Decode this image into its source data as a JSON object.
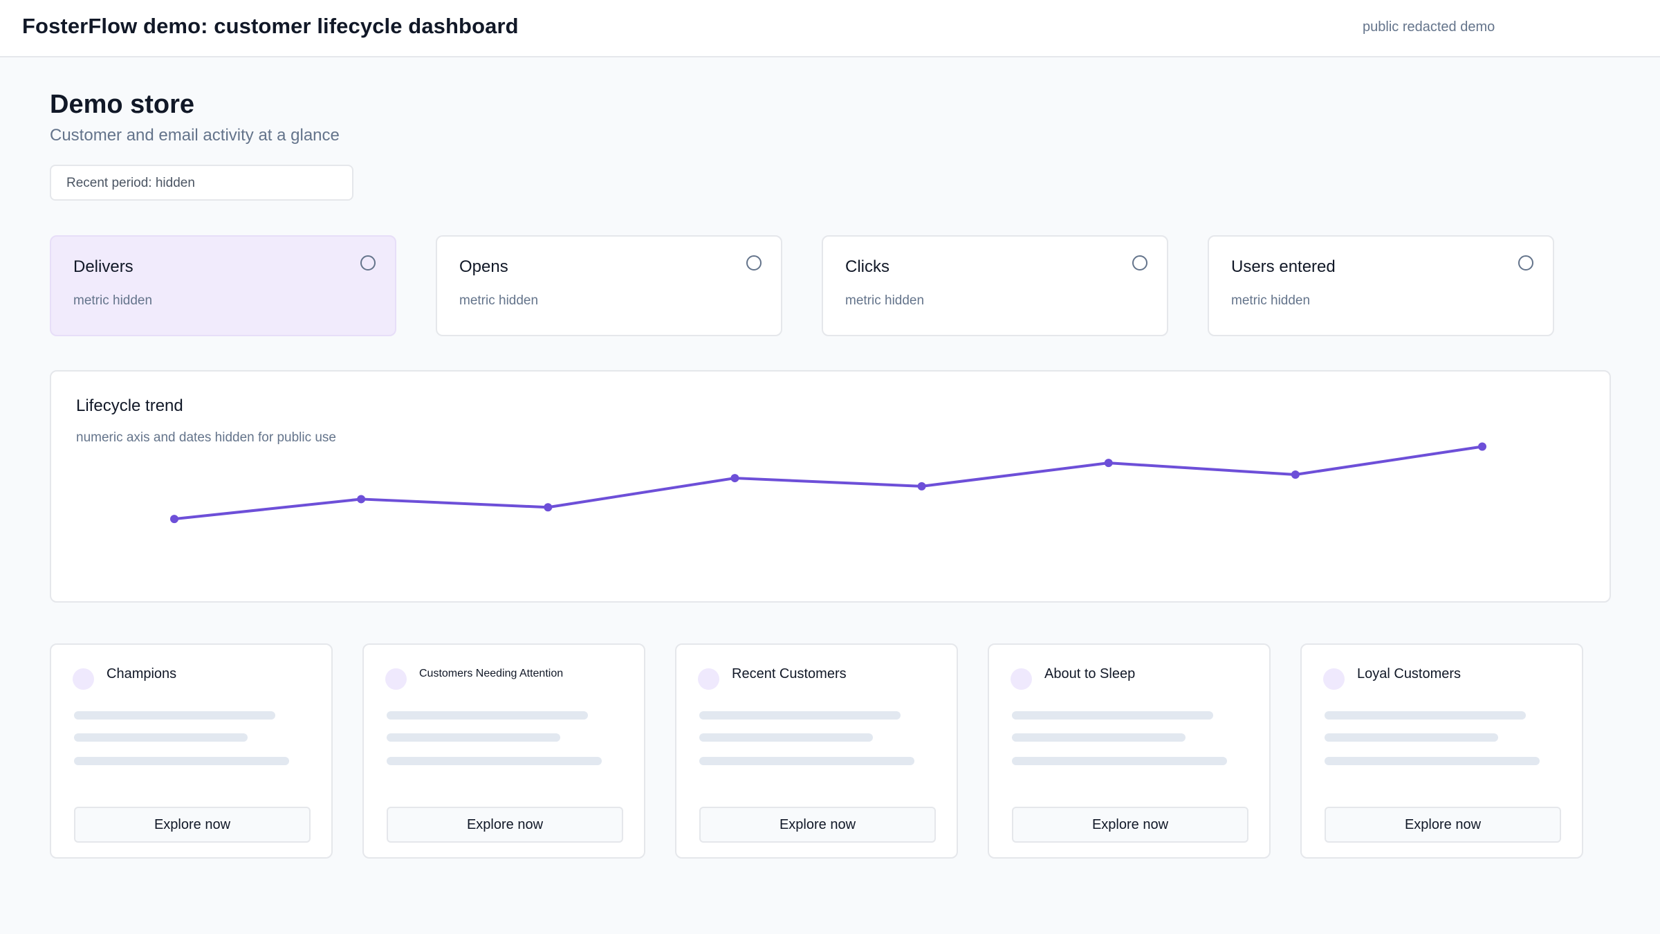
{
  "header": {
    "app_title": "FosterFlow demo: customer lifecycle dashboard",
    "demo_tag": "public redacted demo"
  },
  "store": {
    "title": "Demo store",
    "subtitle": "Customer and email activity at a glance",
    "period_label": "Recent period: hidden"
  },
  "metrics": [
    {
      "label": "Delivers",
      "value": "metric hidden",
      "selected": true
    },
    {
      "label": "Opens",
      "value": "metric hidden",
      "selected": false
    },
    {
      "label": "Clicks",
      "value": "metric hidden",
      "selected": false
    },
    {
      "label": "Users entered",
      "value": "metric hidden",
      "selected": false
    }
  ],
  "trend": {
    "title": "Lifecycle trend",
    "note": "numeric axis and dates hidden for public use"
  },
  "chart_data": {
    "type": "line",
    "title": "Lifecycle trend",
    "xlabel": "",
    "ylabel": "",
    "x": [
      1,
      2,
      3,
      4,
      5,
      6,
      7,
      8
    ],
    "values": [
      1.0,
      2.7,
      2.0,
      4.5,
      3.8,
      5.8,
      4.8,
      7.2
    ],
    "ylim": [
      0,
      8
    ],
    "grid": false,
    "line_color": "#6d4fd8"
  },
  "segments": [
    {
      "name": "Champions",
      "button": "Explore now"
    },
    {
      "name": "Customers Needing Attention",
      "button": "Explore now"
    },
    {
      "name": "Recent Customers",
      "button": "Explore now"
    },
    {
      "name": "About to Sleep",
      "button": "Explore now"
    },
    {
      "name": "Loyal Customers",
      "button": "Explore now"
    }
  ],
  "colors": {
    "accent": "#6d4fd8",
    "selected_card": "#f1ebfc",
    "skeleton": "#e2e8f0",
    "muted_text": "#64748b"
  }
}
